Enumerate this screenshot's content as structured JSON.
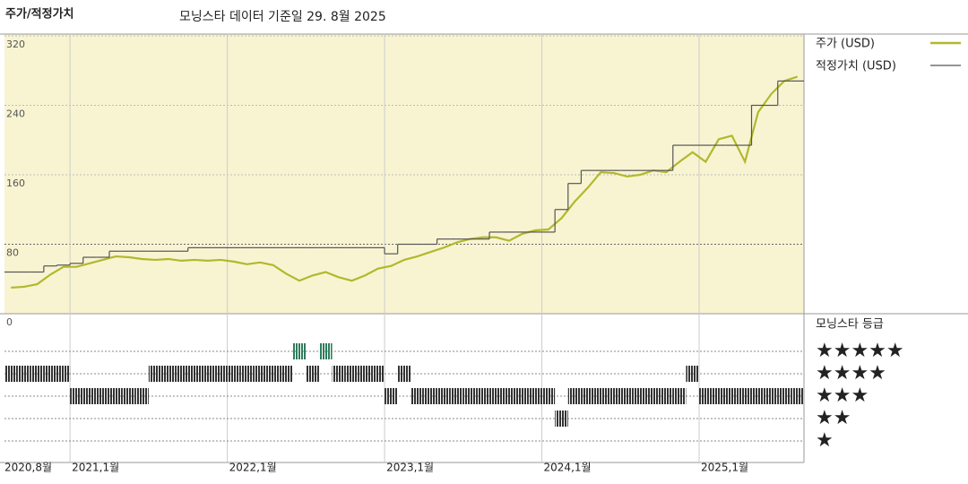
{
  "chart_data": [
    {
      "type": "line",
      "title": "주가/적정가치",
      "subtitle": "모닝스타 데이터 기준일 29. 8월 2025",
      "x": [
        "2020-08",
        "2020-09",
        "2020-10",
        "2020-11",
        "2020-12",
        "2021-01",
        "2021-02",
        "2021-03",
        "2021-04",
        "2021-05",
        "2021-06",
        "2021-07",
        "2021-08",
        "2021-09",
        "2021-10",
        "2021-11",
        "2021-12",
        "2022-01",
        "2022-02",
        "2022-03",
        "2022-04",
        "2022-05",
        "2022-06",
        "2022-07",
        "2022-08",
        "2022-09",
        "2022-10",
        "2022-11",
        "2022-12",
        "2023-01",
        "2023-02",
        "2023-03",
        "2023-04",
        "2023-05",
        "2023-06",
        "2023-07",
        "2023-08",
        "2023-09",
        "2023-10",
        "2023-11",
        "2023-12",
        "2024-01",
        "2024-02",
        "2024-03",
        "2024-04",
        "2024-05",
        "2024-06",
        "2024-07",
        "2024-08",
        "2024-09",
        "2024-10",
        "2024-11",
        "2024-12",
        "2025-01",
        "2025-02",
        "2025-03",
        "2025-04",
        "2025-05",
        "2025-06",
        "2025-07",
        "2025-08"
      ],
      "series": [
        {
          "name": "주가 (USD)",
          "color": "#b2b82c",
          "values": [
            30,
            31,
            34,
            45,
            54,
            54,
            58,
            62,
            66,
            65,
            63,
            62,
            63,
            61,
            62,
            61,
            62,
            60,
            57,
            59,
            56,
            46,
            38,
            44,
            48,
            42,
            38,
            44,
            52,
            55,
            62,
            66,
            71,
            76,
            82,
            86,
            88,
            88,
            84,
            92,
            96,
            97,
            110,
            129,
            145,
            163,
            162,
            158,
            160,
            165,
            163,
            175,
            186,
            175,
            201,
            205,
            175,
            232,
            253,
            268,
            273
          ]
        },
        {
          "name": "적정가치 (USD)",
          "color": "#555555",
          "step": true,
          "values": [
            48,
            48,
            48,
            55,
            56,
            58,
            65,
            65,
            72,
            72,
            72,
            72,
            72,
            72,
            76,
            76,
            76,
            76,
            76,
            76,
            76,
            76,
            76,
            76,
            76,
            76,
            76,
            76,
            76,
            69,
            80,
            80,
            80,
            86,
            86,
            86,
            86,
            94,
            94,
            94,
            94,
            94,
            120,
            150,
            165,
            165,
            165,
            165,
            165,
            165,
            165,
            194,
            194,
            194,
            194,
            194,
            194,
            240,
            240,
            268,
            268
          ]
        }
      ],
      "xlim": [
        "2020-08",
        "2025-09"
      ],
      "xticks": [
        {
          "value": "2020-08",
          "label": "2020,8월"
        },
        {
          "value": "2021-01",
          "label": "2021,1월"
        },
        {
          "value": "2022-01",
          "label": "2022,1월"
        },
        {
          "value": "2023-01",
          "label": "2023,1월"
        },
        {
          "value": "2024-01",
          "label": "2024,1월"
        },
        {
          "value": "2025-01",
          "label": "2025,1월"
        }
      ],
      "ylim": [
        0,
        320
      ],
      "yticks": [
        0,
        80,
        160,
        240,
        320
      ],
      "grid": true,
      "background": "#f8f4d2"
    },
    {
      "type": "timeline",
      "title": "모닝스타 등급",
      "levels": [
        {
          "value": 5,
          "label": "★★★★★"
        },
        {
          "value": 4,
          "label": "★★★★"
        },
        {
          "value": 3,
          "label": "★★★"
        },
        {
          "value": 2,
          "label": "★★"
        },
        {
          "value": 1,
          "label": "★"
        }
      ],
      "level_colors": [
        "#2e7d5b",
        "#333333",
        "#333333",
        "#333333",
        "#333333"
      ],
      "values": [
        4,
        4,
        4,
        4,
        4,
        3,
        3,
        3,
        3,
        3,
        3,
        4,
        4,
        4,
        4,
        4,
        4,
        4,
        4,
        4,
        4,
        4,
        5,
        4,
        5,
        4,
        4,
        4,
        4,
        3,
        4,
        3,
        3,
        3,
        3,
        3,
        3,
        3,
        3,
        3,
        3,
        3,
        2,
        3,
        3,
        3,
        3,
        3,
        3,
        3,
        3,
        3,
        4,
        3,
        3,
        3,
        3,
        3,
        3,
        3,
        3
      ]
    }
  ]
}
